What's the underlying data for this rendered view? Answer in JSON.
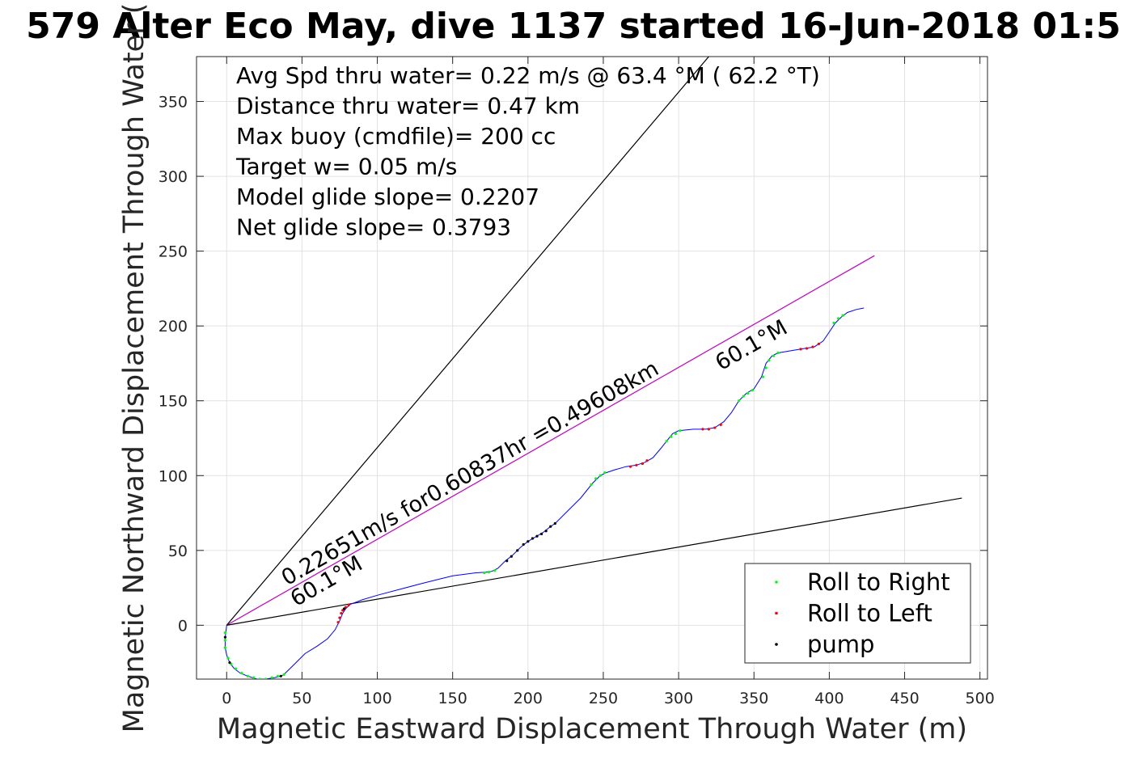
{
  "chart_data": {
    "type": "line",
    "title": "579 Alter Eco May, dive 1137 started 16-Jun-2018 01:5",
    "xlabel": "Magnetic Eastward Displacement Through Water (m)",
    "ylabel": "Magnetic Northward Displacement Through Water (",
    "xlim": [
      -20,
      505
    ],
    "ylim": [
      -36,
      380
    ],
    "xticks": [
      0,
      50,
      100,
      150,
      200,
      250,
      300,
      350,
      400,
      450,
      500
    ],
    "yticks": [
      0,
      50,
      100,
      150,
      200,
      250,
      300,
      350
    ],
    "grid": true,
    "info_lines": [
      "Avg Spd thru water=  0.22 m/s @  63.4 °M ( 62.2 °T)",
      "Distance thru water=  0.47 km",
      "Max buoy (cmdfile)= 200 cc",
      "Target w= 0.05 m/s",
      "Model glide slope= 0.2207",
      "Net glide slope= 0.3793"
    ],
    "annotations": {
      "speed_label": "0.22651m/s for0.60837hr =0.49608km",
      "heading_label_start": "60.1°M",
      "heading_label_end": "60.1°M"
    },
    "reference_lines": [
      {
        "name": "upper-bound-line",
        "color": "#000000",
        "points": [
          [
            0,
            0
          ],
          [
            320,
            380
          ]
        ]
      },
      {
        "name": "heading-line",
        "color": "#bf00bf",
        "points": [
          [
            0,
            0
          ],
          [
            430,
            247
          ]
        ]
      },
      {
        "name": "lower-bound-line",
        "color": "#000000",
        "points": [
          [
            0,
            0
          ],
          [
            488,
            85
          ]
        ]
      }
    ],
    "series": [
      {
        "name": "track",
        "color": "#0000ff",
        "values": [
          [
            0,
            0
          ],
          [
            -1,
            -8
          ],
          [
            -1,
            -15
          ],
          [
            0,
            -20
          ],
          [
            2,
            -25
          ],
          [
            5,
            -29
          ],
          [
            9,
            -32
          ],
          [
            14,
            -34
          ],
          [
            20,
            -36
          ],
          [
            26,
            -36
          ],
          [
            32,
            -35
          ],
          [
            36,
            -34
          ],
          [
            38,
            -33
          ],
          [
            45,
            -26
          ],
          [
            52,
            -19
          ],
          [
            60,
            -14
          ],
          [
            67,
            -9
          ],
          [
            72,
            -3
          ],
          [
            75,
            3
          ],
          [
            77,
            8
          ],
          [
            79,
            11
          ],
          [
            82,
            14
          ],
          [
            90,
            17
          ],
          [
            100,
            20
          ],
          [
            115,
            24
          ],
          [
            130,
            28
          ],
          [
            150,
            33
          ],
          [
            165,
            35
          ],
          [
            172,
            35.5
          ],
          [
            176,
            36
          ],
          [
            180,
            38
          ],
          [
            185,
            43
          ],
          [
            190,
            47
          ],
          [
            195,
            52
          ],
          [
            200,
            56
          ],
          [
            205,
            59
          ],
          [
            210,
            62
          ],
          [
            215,
            66
          ],
          [
            218,
            68
          ],
          [
            225,
            75
          ],
          [
            235,
            85
          ],
          [
            243,
            95
          ],
          [
            248,
            100
          ],
          [
            252,
            102
          ],
          [
            258,
            104
          ],
          [
            265,
            106
          ],
          [
            272,
            107
          ],
          [
            278,
            109
          ],
          [
            283,
            112
          ],
          [
            288,
            118
          ],
          [
            292,
            123
          ],
          [
            296,
            128
          ],
          [
            300,
            130
          ],
          [
            310,
            131
          ],
          [
            318,
            131
          ],
          [
            324,
            132
          ],
          [
            330,
            136
          ],
          [
            335,
            142
          ],
          [
            340,
            150
          ],
          [
            345,
            155
          ],
          [
            350,
            158
          ],
          [
            355,
            166
          ],
          [
            358,
            175
          ],
          [
            362,
            180
          ],
          [
            366,
            182
          ],
          [
            372,
            183
          ],
          [
            378,
            184
          ],
          [
            384,
            185
          ],
          [
            390,
            186
          ],
          [
            396,
            190
          ],
          [
            400,
            196
          ],
          [
            404,
            202
          ],
          [
            408,
            206
          ],
          [
            412,
            209
          ],
          [
            418,
            211
          ],
          [
            423,
            212
          ]
        ]
      },
      {
        "name": "Roll to Right",
        "color": "#00ff00",
        "values": [
          [
            -1,
            -5
          ],
          [
            -1,
            -10
          ],
          [
            -1,
            -15
          ],
          [
            1,
            -22
          ],
          [
            3,
            -26
          ],
          [
            6,
            -29
          ],
          [
            10,
            -32
          ],
          [
            14,
            -34
          ],
          [
            18,
            -35
          ],
          [
            22,
            -36
          ],
          [
            26,
            -36
          ],
          [
            30,
            -35
          ],
          [
            34,
            -34
          ],
          [
            38,
            -33
          ],
          [
            171,
            35
          ],
          [
            174,
            35.5
          ],
          [
            178,
            36.5
          ],
          [
            242,
            94
          ],
          [
            245,
            98
          ],
          [
            248,
            100
          ],
          [
            251,
            102
          ],
          [
            292,
            123
          ],
          [
            295,
            126
          ],
          [
            298,
            128
          ],
          [
            301,
            130
          ],
          [
            340,
            150
          ],
          [
            343,
            153
          ],
          [
            346,
            155
          ],
          [
            349,
            157
          ],
          [
            356,
            166
          ],
          [
            358,
            172
          ],
          [
            360,
            177
          ],
          [
            363,
            180
          ],
          [
            366,
            182
          ],
          [
            403,
            202
          ],
          [
            406,
            205
          ],
          [
            409,
            207
          ]
        ]
      },
      {
        "name": "Roll to Left",
        "color": "#ff0000",
        "values": [
          [
            74,
            2
          ],
          [
            75,
            5
          ],
          [
            76,
            8
          ],
          [
            77,
            10
          ],
          [
            79,
            12
          ],
          [
            81,
            13.5
          ],
          [
            268,
            106
          ],
          [
            272,
            107
          ],
          [
            276,
            108
          ],
          [
            279,
            110
          ],
          [
            316,
            131
          ],
          [
            320,
            131
          ],
          [
            324,
            132
          ],
          [
            328,
            134
          ],
          [
            381,
            184.5
          ],
          [
            385,
            185
          ],
          [
            389,
            186
          ],
          [
            393,
            188
          ]
        ]
      },
      {
        "name": "pump",
        "color": "#000000",
        "values": [
          [
            -1,
            -8
          ],
          [
            2,
            -25
          ],
          [
            36,
            -34
          ],
          [
            78,
            11
          ],
          [
            186,
            43
          ],
          [
            189,
            46
          ],
          [
            193,
            50
          ],
          [
            197,
            54
          ],
          [
            200,
            56
          ],
          [
            203,
            58
          ],
          [
            206,
            59.5
          ],
          [
            209,
            61
          ],
          [
            212,
            63
          ],
          [
            215,
            66
          ],
          [
            218,
            68
          ]
        ]
      }
    ],
    "legend": {
      "placement": "bottom-right",
      "entries": [
        {
          "label": "Roll to Right",
          "color": "#00ff00"
        },
        {
          "label": "Roll to Left",
          "color": "#ff0000"
        },
        {
          "label": "pump",
          "color": "#000000"
        }
      ]
    }
  }
}
